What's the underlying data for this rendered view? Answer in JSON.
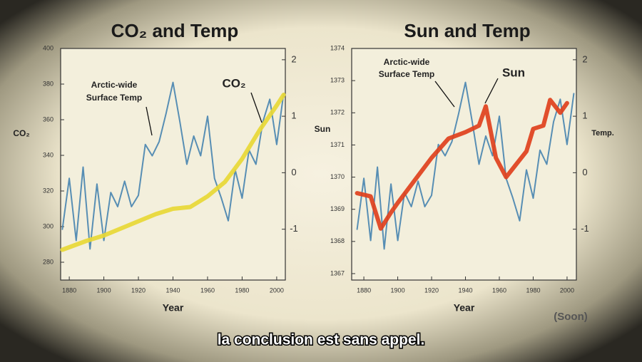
{
  "chart_data": [
    {
      "type": "line",
      "title": "CO₂ and Temp",
      "y_label": "CO₂",
      "x_label": "Year",
      "annotations": [
        "Arctic-wide",
        "Surface Temp"
      ],
      "xlim": [
        1875,
        2005
      ],
      "xticks": [
        1880,
        1900,
        1920,
        1940,
        1960,
        1980,
        2000
      ],
      "ylim": [
        270,
        400
      ],
      "yticks": [
        280,
        300,
        320,
        340,
        360,
        380,
        400
      ],
      "y2lim": [
        -1.9,
        2.2
      ],
      "y2ticks": [
        -1,
        0,
        1,
        2
      ],
      "series": [
        {
          "color": "#4a86b0",
          "axis": "y2",
          "x": [
            1876,
            1880,
            1884,
            1888,
            1892,
            1896,
            1900,
            1904,
            1908,
            1912,
            1916,
            1920,
            1924,
            1928,
            1932,
            1936,
            1940,
            1944,
            1948,
            1952,
            1956,
            1960,
            1964,
            1968,
            1972,
            1976,
            1980,
            1984,
            1988,
            1992,
            1996,
            2000,
            2004
          ],
          "values": [
            -1.0,
            -0.1,
            -1.2,
            0.1,
            -1.35,
            -0.2,
            -1.2,
            -0.35,
            -0.6,
            -0.15,
            -0.6,
            -0.4,
            0.5,
            0.3,
            0.55,
            1.05,
            1.6,
            0.9,
            0.15,
            0.65,
            0.3,
            1.0,
            -0.1,
            -0.45,
            -0.85,
            0.05,
            -0.45,
            0.4,
            0.15,
            0.9,
            1.3,
            0.5,
            1.4
          ]
        },
        {
          "name": "CO₂",
          "color": "#e8d835",
          "axis": "y",
          "x": [
            1876,
            1890,
            1900,
            1910,
            1920,
            1930,
            1940,
            1950,
            1960,
            1970,
            1980,
            1990,
            2000,
            2004
          ],
          "values": [
            287,
            292,
            295,
            299,
            303,
            307,
            310,
            311,
            317,
            325,
            338,
            354,
            368,
            374
          ]
        }
      ]
    },
    {
      "type": "line",
      "title": "Sun and Temp",
      "y_label": "Sun",
      "y2_label": "Temp.",
      "x_label": "Year",
      "annotations": [
        "Arctic-wide",
        "Surface Temp"
      ],
      "source": "(Soon)",
      "xlim": [
        1872.8,
        2005.5
      ],
      "xticks": [
        1880,
        1900,
        1920,
        1940,
        1960,
        1980,
        2000
      ],
      "ylim": [
        1366.8,
        1374
      ],
      "yticks": [
        1367,
        1368,
        1369,
        1370,
        1371,
        1372,
        1373,
        1374
      ],
      "y2lim": [
        -1.9,
        2.2
      ],
      "y2ticks": [
        -1,
        0,
        1,
        2
      ],
      "series": [
        {
          "color": "#4a86b0",
          "axis": "y2",
          "x": [
            1876,
            1880,
            1884,
            1888,
            1892,
            1896,
            1900,
            1904,
            1908,
            1912,
            1916,
            1920,
            1924,
            1928,
            1932,
            1936,
            1940,
            1944,
            1948,
            1952,
            1956,
            1960,
            1964,
            1968,
            1972,
            1976,
            1980,
            1984,
            1988,
            1992,
            1996,
            2000,
            2004
          ],
          "values": [
            -1.0,
            -0.1,
            -1.2,
            0.1,
            -1.35,
            -0.2,
            -1.2,
            -0.35,
            -0.6,
            -0.15,
            -0.6,
            -0.4,
            0.5,
            0.3,
            0.55,
            1.05,
            1.6,
            0.9,
            0.15,
            0.65,
            0.3,
            1.0,
            -0.1,
            -0.45,
            -0.85,
            0.05,
            -0.45,
            0.4,
            0.15,
            0.9,
            1.3,
            0.5,
            1.4
          ]
        },
        {
          "name": "Sun",
          "color": "#e0401c",
          "axis": "y",
          "x": [
            1876,
            1884,
            1890,
            1896,
            1900,
            1910,
            1920,
            1930,
            1940,
            1948,
            1952,
            1958,
            1964,
            1970,
            1976,
            1980,
            1986,
            1990,
            1996,
            2000
          ],
          "values": [
            1369.5,
            1369.4,
            1368.4,
            1368.9,
            1369.2,
            1369.9,
            1370.6,
            1371.2,
            1371.4,
            1371.6,
            1372.2,
            1370.6,
            1370.0,
            1370.4,
            1370.8,
            1371.5,
            1371.6,
            1372.4,
            1372.0,
            1372.3
          ]
        }
      ]
    }
  ],
  "caption": "la conclusion est sans appel."
}
